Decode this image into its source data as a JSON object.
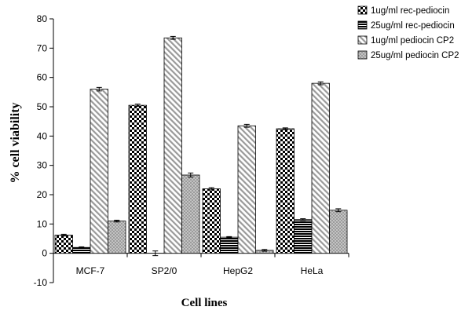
{
  "chart_data": {
    "type": "bar",
    "title": "",
    "xlabel": "Cell lines",
    "ylabel": "% cell viability",
    "ylim": [
      -10,
      80
    ],
    "yticks": [
      -10,
      0,
      10,
      20,
      30,
      40,
      50,
      60,
      70,
      80
    ],
    "categories": [
      "MCF-7",
      "SP2/0",
      "HepG2",
      "HeLa"
    ],
    "grid": false,
    "legend_position": "top-right",
    "series": [
      {
        "name": "1ug/ml rec-pediocin",
        "pattern": "checker",
        "values": [
          6.2,
          50.5,
          22.0,
          42.5
        ],
        "errors": [
          0.3,
          0.4,
          0.4,
          0.3
        ]
      },
      {
        "name": "25ug/ml rec-pediocin",
        "pattern": "hstripes",
        "values": [
          2.0,
          0.0,
          5.5,
          11.5
        ],
        "errors": [
          0.2,
          0.8,
          0.2,
          0.3
        ]
      },
      {
        "name": "1ug/ml pediocin CP2",
        "pattern": "diagonal",
        "values": [
          56.0,
          73.5,
          43.5,
          58.0
        ],
        "errors": [
          0.6,
          0.5,
          0.5,
          0.5
        ]
      },
      {
        "name": "25ug/ml pediocin CP2",
        "pattern": "dots",
        "values": [
          11.0,
          26.7,
          1.0,
          14.7
        ],
        "errors": [
          0.3,
          0.7,
          0.3,
          0.5
        ]
      }
    ]
  }
}
